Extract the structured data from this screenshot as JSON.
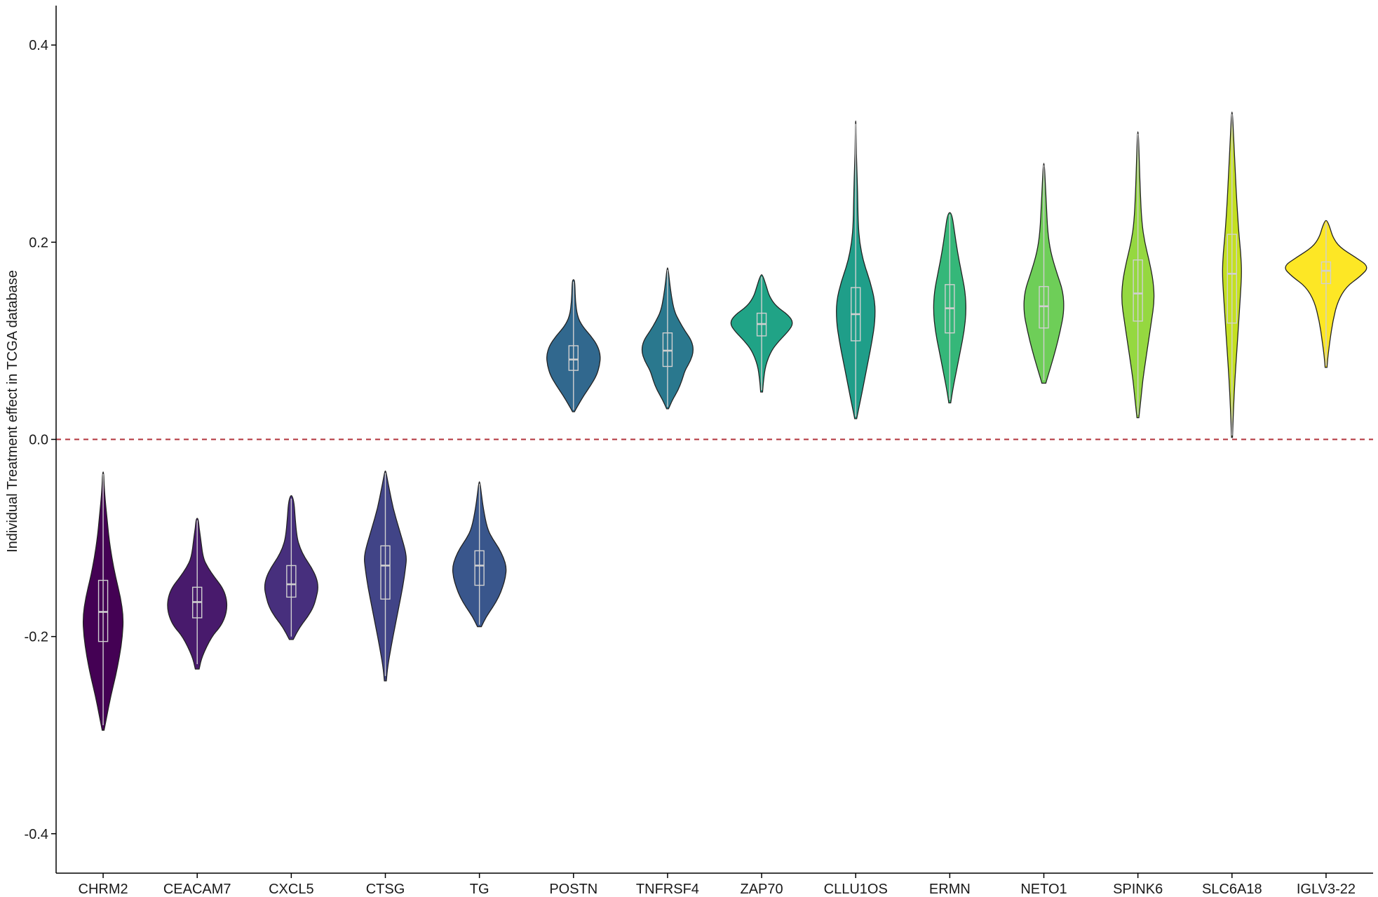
{
  "chart_data": {
    "type": "violin",
    "title": "",
    "xlabel": "",
    "ylabel": "Individual Treatment effect in TCGA database",
    "ylim": [
      -0.44,
      0.44
    ],
    "y_ticks": [
      0.4,
      0.2,
      0.0,
      -0.2,
      -0.4
    ],
    "y_tick_labels": [
      "0.4",
      "0.2",
      "0.0",
      "-0.2",
      "-0.4"
    ],
    "reference_line": {
      "y": 0.0,
      "style": "dashed",
      "color": "#b2333b"
    },
    "grid": false,
    "legend": "none",
    "categories": [
      "CHRM2",
      "CEACAM7",
      "CXCL5",
      "CTSG",
      "TG",
      "POSTN",
      "TNFRSF4",
      "ZAP70",
      "CLLU1OS",
      "ERMN",
      "NETO1",
      "SPINK6",
      "SLC6A18",
      "IGLV3-22"
    ],
    "series": [
      {
        "colors": [
          "#440154",
          "#481a6c",
          "#472f7d",
          "#414487",
          "#39568c",
          "#31688e",
          "#2a788e",
          "#20a386",
          "#1f9e89",
          "#35b779",
          "#6ece58",
          "#95d840",
          "#c4e021",
          "#fde725"
        ],
        "violins": [
          {
            "min": -0.295,
            "max": -0.033,
            "q1": -0.205,
            "median": -0.175,
            "q3": -0.143,
            "whisker_low": -0.29,
            "whisker_high": -0.035,
            "density": [
              [
                -0.295,
                0.002
              ],
              [
                -0.28,
                0.008
              ],
              [
                -0.26,
                0.016
              ],
              [
                -0.24,
                0.026
              ],
              [
                -0.22,
                0.034
              ],
              [
                -0.2,
                0.04
              ],
              [
                -0.18,
                0.042
              ],
              [
                -0.16,
                0.036
              ],
              [
                -0.14,
                0.026
              ],
              [
                -0.12,
                0.018
              ],
              [
                -0.1,
                0.012
              ],
              [
                -0.08,
                0.008
              ],
              [
                -0.06,
                0.004
              ],
              [
                -0.045,
                0.002
              ],
              [
                -0.033,
                0.001
              ]
            ]
          },
          {
            "min": -0.233,
            "max": -0.08,
            "q1": -0.181,
            "median": -0.165,
            "q3": -0.15,
            "whisker_low": -0.228,
            "whisker_high": -0.082,
            "density": [
              [
                -0.233,
                0.004
              ],
              [
                -0.22,
                0.01
              ],
              [
                -0.2,
                0.03
              ],
              [
                -0.19,
                0.048
              ],
              [
                -0.18,
                0.058
              ],
              [
                -0.17,
                0.062
              ],
              [
                -0.16,
                0.06
              ],
              [
                -0.15,
                0.052
              ],
              [
                -0.14,
                0.036
              ],
              [
                -0.13,
                0.022
              ],
              [
                -0.12,
                0.012
              ],
              [
                -0.1,
                0.007
              ],
              [
                -0.09,
                0.004
              ],
              [
                -0.08,
                0.002
              ]
            ]
          },
          {
            "min": -0.203,
            "max": -0.057,
            "q1": -0.16,
            "median": -0.147,
            "q3": -0.128,
            "whisker_low": -0.2,
            "whisker_high": -0.06,
            "density": [
              [
                -0.203,
                0.004
              ],
              [
                -0.19,
                0.018
              ],
              [
                -0.18,
                0.034
              ],
              [
                -0.17,
                0.046
              ],
              [
                -0.16,
                0.052
              ],
              [
                -0.15,
                0.056
              ],
              [
                -0.14,
                0.052
              ],
              [
                -0.13,
                0.042
              ],
              [
                -0.12,
                0.028
              ],
              [
                -0.11,
                0.018
              ],
              [
                -0.1,
                0.012
              ],
              [
                -0.08,
                0.008
              ],
              [
                -0.065,
                0.006
              ],
              [
                -0.057,
                0.002
              ]
            ]
          },
          {
            "min": -0.245,
            "max": -0.032,
            "q1": -0.162,
            "median": -0.128,
            "q3": -0.108,
            "whisker_low": -0.24,
            "whisker_high": -0.034,
            "density": [
              [
                -0.245,
                0.002
              ],
              [
                -0.23,
                0.005
              ],
              [
                -0.21,
                0.012
              ],
              [
                -0.19,
                0.02
              ],
              [
                -0.17,
                0.028
              ],
              [
                -0.15,
                0.036
              ],
              [
                -0.13,
                0.042
              ],
              [
                -0.12,
                0.044
              ],
              [
                -0.11,
                0.04
              ],
              [
                -0.09,
                0.028
              ],
              [
                -0.07,
                0.016
              ],
              [
                -0.05,
                0.008
              ],
              [
                -0.04,
                0.004
              ],
              [
                -0.032,
                0.001
              ]
            ]
          },
          {
            "min": -0.19,
            "max": -0.043,
            "q1": -0.148,
            "median": -0.128,
            "q3": -0.113,
            "whisker_low": -0.188,
            "whisker_high": -0.045,
            "density": [
              [
                -0.19,
                0.004
              ],
              [
                -0.18,
                0.014
              ],
              [
                -0.17,
                0.028
              ],
              [
                -0.16,
                0.04
              ],
              [
                -0.15,
                0.048
              ],
              [
                -0.14,
                0.054
              ],
              [
                -0.13,
                0.056
              ],
              [
                -0.12,
                0.05
              ],
              [
                -0.11,
                0.04
              ],
              [
                -0.1,
                0.026
              ],
              [
                -0.09,
                0.016
              ],
              [
                -0.07,
                0.008
              ],
              [
                -0.055,
                0.004
              ],
              [
                -0.043,
                0.001
              ]
            ]
          },
          {
            "min": 0.028,
            "max": 0.162,
            "q1": 0.07,
            "median": 0.081,
            "q3": 0.095,
            "whisker_low": 0.03,
            "whisker_high": 0.16,
            "density": [
              [
                0.028,
                0.002
              ],
              [
                0.035,
                0.01
              ],
              [
                0.045,
                0.022
              ],
              [
                0.055,
                0.036
              ],
              [
                0.065,
                0.048
              ],
              [
                0.075,
                0.054
              ],
              [
                0.085,
                0.056
              ],
              [
                0.095,
                0.05
              ],
              [
                0.105,
                0.036
              ],
              [
                0.115,
                0.018
              ],
              [
                0.125,
                0.008
              ],
              [
                0.14,
                0.004
              ],
              [
                0.155,
                0.003
              ],
              [
                0.162,
                0.002
              ]
            ]
          },
          {
            "min": 0.031,
            "max": 0.174,
            "q1": 0.074,
            "median": 0.09,
            "q3": 0.108,
            "whisker_low": 0.033,
            "whisker_high": 0.172,
            "density": [
              [
                0.031,
                0.002
              ],
              [
                0.04,
                0.01
              ],
              [
                0.05,
                0.022
              ],
              [
                0.06,
                0.03
              ],
              [
                0.07,
                0.036
              ],
              [
                0.08,
                0.048
              ],
              [
                0.09,
                0.054
              ],
              [
                0.1,
                0.05
              ],
              [
                0.11,
                0.036
              ],
              [
                0.12,
                0.024
              ],
              [
                0.13,
                0.014
              ],
              [
                0.145,
                0.008
              ],
              [
                0.16,
                0.004
              ],
              [
                0.174,
                0.001
              ]
            ]
          },
          {
            "min": 0.048,
            "max": 0.167,
            "q1": 0.105,
            "median": 0.117,
            "q3": 0.128,
            "whisker_low": 0.05,
            "whisker_high": 0.165,
            "density": [
              [
                0.048,
                0.002
              ],
              [
                0.06,
                0.004
              ],
              [
                0.075,
                0.008
              ],
              [
                0.09,
                0.02
              ],
              [
                0.1,
                0.036
              ],
              [
                0.11,
                0.056
              ],
              [
                0.118,
                0.066
              ],
              [
                0.126,
                0.056
              ],
              [
                0.135,
                0.03
              ],
              [
                0.145,
                0.016
              ],
              [
                0.155,
                0.01
              ],
              [
                0.167,
                0.002
              ]
            ]
          },
          {
            "min": 0.021,
            "max": 0.323,
            "q1": 0.1,
            "median": 0.127,
            "q3": 0.154,
            "whisker_low": 0.023,
            "whisker_high": 0.32,
            "density": [
              [
                0.021,
                0.002
              ],
              [
                0.04,
                0.01
              ],
              [
                0.06,
                0.018
              ],
              [
                0.08,
                0.026
              ],
              [
                0.1,
                0.034
              ],
              [
                0.12,
                0.04
              ],
              [
                0.14,
                0.04
              ],
              [
                0.16,
                0.03
              ],
              [
                0.18,
                0.016
              ],
              [
                0.2,
                0.008
              ],
              [
                0.22,
                0.005
              ],
              [
                0.25,
                0.004
              ],
              [
                0.28,
                0.002
              ],
              [
                0.3,
                0.001
              ],
              [
                0.323,
                0.0005
              ]
            ]
          },
          {
            "min": 0.037,
            "max": 0.23,
            "q1": 0.108,
            "median": 0.133,
            "q3": 0.157,
            "whisker_low": 0.04,
            "whisker_high": 0.228,
            "density": [
              [
                0.037,
                0.002
              ],
              [
                0.05,
                0.006
              ],
              [
                0.07,
                0.014
              ],
              [
                0.09,
                0.022
              ],
              [
                0.11,
                0.03
              ],
              [
                0.13,
                0.034
              ],
              [
                0.15,
                0.032
              ],
              [
                0.17,
                0.024
              ],
              [
                0.19,
                0.016
              ],
              [
                0.21,
                0.01
              ],
              [
                0.23,
                0.004
              ]
            ]
          },
          {
            "min": 0.057,
            "max": 0.28,
            "q1": 0.113,
            "median": 0.135,
            "q3": 0.155,
            "whisker_low": 0.06,
            "whisker_high": 0.278,
            "density": [
              [
                0.057,
                0.004
              ],
              [
                0.07,
                0.012
              ],
              [
                0.09,
                0.024
              ],
              [
                0.11,
                0.034
              ],
              [
                0.13,
                0.042
              ],
              [
                0.15,
                0.04
              ],
              [
                0.17,
                0.026
              ],
              [
                0.19,
                0.014
              ],
              [
                0.21,
                0.008
              ],
              [
                0.24,
                0.005
              ],
              [
                0.26,
                0.003
              ],
              [
                0.28,
                0.001
              ]
            ]
          },
          {
            "min": 0.022,
            "max": 0.312,
            "q1": 0.12,
            "median": 0.148,
            "q3": 0.182,
            "whisker_low": 0.025,
            "whisker_high": 0.31,
            "density": [
              [
                0.022,
                0.002
              ],
              [
                0.04,
                0.006
              ],
              [
                0.06,
                0.01
              ],
              [
                0.08,
                0.016
              ],
              [
                0.1,
                0.022
              ],
              [
                0.12,
                0.028
              ],
              [
                0.14,
                0.034
              ],
              [
                0.16,
                0.032
              ],
              [
                0.18,
                0.024
              ],
              [
                0.2,
                0.014
              ],
              [
                0.22,
                0.008
              ],
              [
                0.25,
                0.005
              ],
              [
                0.28,
                0.003
              ],
              [
                0.312,
                0.001
              ]
            ]
          },
          {
            "min": 0.002,
            "max": 0.332,
            "q1": 0.118,
            "median": 0.168,
            "q3": 0.208,
            "whisker_low": 0.004,
            "whisker_high": 0.33,
            "density": [
              [
                0.002,
                0.001
              ],
              [
                0.03,
                0.003
              ],
              [
                0.06,
                0.006
              ],
              [
                0.09,
                0.01
              ],
              [
                0.12,
                0.014
              ],
              [
                0.15,
                0.018
              ],
              [
                0.17,
                0.02
              ],
              [
                0.19,
                0.018
              ],
              [
                0.21,
                0.014
              ],
              [
                0.24,
                0.01
              ],
              [
                0.27,
                0.007
              ],
              [
                0.3,
                0.004
              ],
              [
                0.332,
                0.001
              ]
            ]
          },
          {
            "min": 0.073,
            "max": 0.222,
            "q1": 0.158,
            "median": 0.171,
            "q3": 0.18,
            "whisker_low": 0.075,
            "whisker_high": 0.22,
            "density": [
              [
                0.073,
                0.002
              ],
              [
                0.085,
                0.004
              ],
              [
                0.1,
                0.008
              ],
              [
                0.12,
                0.014
              ],
              [
                0.14,
                0.024
              ],
              [
                0.155,
                0.042
              ],
              [
                0.165,
                0.07
              ],
              [
                0.175,
                0.09
              ],
              [
                0.185,
                0.06
              ],
              [
                0.195,
                0.028
              ],
              [
                0.205,
                0.014
              ],
              [
                0.215,
                0.008
              ],
              [
                0.222,
                0.002
              ]
            ]
          }
        ]
      }
    ]
  }
}
